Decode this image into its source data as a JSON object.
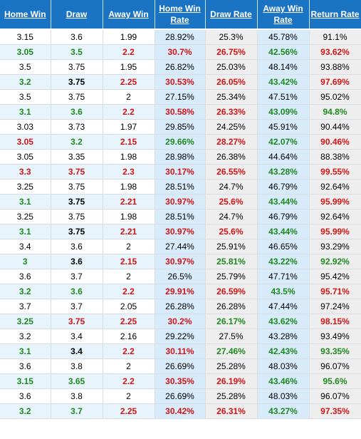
{
  "headers": {
    "home_win": "Home Win",
    "draw": "Draw",
    "away_win": "Away Win",
    "home_win_rate": "Home Win Rate",
    "draw_rate": "Draw Rate",
    "away_win_rate": "Away Win Rate",
    "return_rate": "Return Rate"
  },
  "colors": {
    "header_bg": "#1b73c4",
    "green": "#1e8a1e",
    "red": "#d21414",
    "rate_bg": "#d8ebfa",
    "grey_bg": "#eeeeee"
  },
  "rows": [
    {
      "highlight": false,
      "home": "3.15",
      "draw": "3.6",
      "away": "1.99",
      "home_rate": "28.92%",
      "draw_rate": "25.3%",
      "away_rate": "45.78%",
      "return": "91.1%",
      "c": [
        "k",
        "k",
        "k",
        "k",
        "k",
        "k",
        "k"
      ]
    },
    {
      "highlight": true,
      "home": "3.05",
      "draw": "3.5",
      "away": "2.2",
      "home_rate": "30.7%",
      "draw_rate": "26.75%",
      "away_rate": "42.56%",
      "return": "93.62%",
      "c": [
        "g",
        "g",
        "r",
        "r",
        "r",
        "g",
        "r"
      ]
    },
    {
      "highlight": false,
      "home": "3.5",
      "draw": "3.75",
      "away": "1.95",
      "home_rate": "26.82%",
      "draw_rate": "25.03%",
      "away_rate": "48.14%",
      "return": "93.88%",
      "c": [
        "k",
        "k",
        "k",
        "k",
        "k",
        "k",
        "k"
      ]
    },
    {
      "highlight": true,
      "home": "3.2",
      "draw": "3.75",
      "away": "2.25",
      "home_rate": "30.53%",
      "draw_rate": "26.05%",
      "away_rate": "43.42%",
      "return": "97.69%",
      "c": [
        "g",
        "k",
        "r",
        "r",
        "r",
        "g",
        "r"
      ]
    },
    {
      "highlight": false,
      "home": "3.5",
      "draw": "3.75",
      "away": "2",
      "home_rate": "27.15%",
      "draw_rate": "25.34%",
      "away_rate": "47.51%",
      "return": "95.02%",
      "c": [
        "k",
        "k",
        "k",
        "k",
        "k",
        "k",
        "k"
      ]
    },
    {
      "highlight": true,
      "home": "3.1",
      "draw": "3.6",
      "away": "2.2",
      "home_rate": "30.58%",
      "draw_rate": "26.33%",
      "away_rate": "43.09%",
      "return": "94.8%",
      "c": [
        "g",
        "g",
        "r",
        "r",
        "r",
        "g",
        "g"
      ]
    },
    {
      "highlight": false,
      "home": "3.03",
      "draw": "3.73",
      "away": "1.97",
      "home_rate": "29.85%",
      "draw_rate": "24.25%",
      "away_rate": "45.91%",
      "return": "90.44%",
      "c": [
        "k",
        "k",
        "k",
        "k",
        "k",
        "k",
        "k"
      ]
    },
    {
      "highlight": true,
      "home": "3.05",
      "draw": "3.2",
      "away": "2.15",
      "home_rate": "29.66%",
      "draw_rate": "28.27%",
      "away_rate": "42.07%",
      "return": "90.46%",
      "c": [
        "r",
        "g",
        "r",
        "g",
        "r",
        "g",
        "r"
      ]
    },
    {
      "highlight": false,
      "home": "3.05",
      "draw": "3.35",
      "away": "1.98",
      "home_rate": "28.98%",
      "draw_rate": "26.38%",
      "away_rate": "44.64%",
      "return": "88.38%",
      "c": [
        "k",
        "k",
        "k",
        "k",
        "k",
        "k",
        "k"
      ]
    },
    {
      "highlight": true,
      "home": "3.3",
      "draw": "3.75",
      "away": "2.3",
      "home_rate": "30.17%",
      "draw_rate": "26.55%",
      "away_rate": "43.28%",
      "return": "99.55%",
      "c": [
        "r",
        "r",
        "r",
        "r",
        "r",
        "g",
        "r"
      ]
    },
    {
      "highlight": false,
      "home": "3.25",
      "draw": "3.75",
      "away": "1.98",
      "home_rate": "28.51%",
      "draw_rate": "24.7%",
      "away_rate": "46.79%",
      "return": "92.64%",
      "c": [
        "k",
        "k",
        "k",
        "k",
        "k",
        "k",
        "k"
      ]
    },
    {
      "highlight": true,
      "home": "3.1",
      "draw": "3.75",
      "away": "2.21",
      "home_rate": "30.97%",
      "draw_rate": "25.6%",
      "away_rate": "43.44%",
      "return": "95.99%",
      "c": [
        "g",
        "k",
        "r",
        "r",
        "r",
        "g",
        "r"
      ]
    },
    {
      "highlight": false,
      "home": "3.25",
      "draw": "3.75",
      "away": "1.98",
      "home_rate": "28.51%",
      "draw_rate": "24.7%",
      "away_rate": "46.79%",
      "return": "92.64%",
      "c": [
        "k",
        "k",
        "k",
        "k",
        "k",
        "k",
        "k"
      ]
    },
    {
      "highlight": true,
      "home": "3.1",
      "draw": "3.75",
      "away": "2.21",
      "home_rate": "30.97%",
      "draw_rate": "25.6%",
      "away_rate": "43.44%",
      "return": "95.99%",
      "c": [
        "g",
        "k",
        "r",
        "r",
        "r",
        "g",
        "r"
      ]
    },
    {
      "highlight": false,
      "home": "3.4",
      "draw": "3.6",
      "away": "2",
      "home_rate": "27.44%",
      "draw_rate": "25.91%",
      "away_rate": "46.65%",
      "return": "93.29%",
      "c": [
        "k",
        "k",
        "k",
        "k",
        "k",
        "k",
        "k"
      ]
    },
    {
      "highlight": true,
      "home": "3",
      "draw": "3.6",
      "away": "2.15",
      "home_rate": "30.97%",
      "draw_rate": "25.81%",
      "away_rate": "43.22%",
      "return": "92.92%",
      "c": [
        "g",
        "k",
        "r",
        "r",
        "g",
        "g",
        "g"
      ]
    },
    {
      "highlight": false,
      "home": "3.6",
      "draw": "3.7",
      "away": "2",
      "home_rate": "26.5%",
      "draw_rate": "25.79%",
      "away_rate": "47.71%",
      "return": "95.42%",
      "c": [
        "k",
        "k",
        "k",
        "k",
        "k",
        "k",
        "k"
      ]
    },
    {
      "highlight": true,
      "home": "3.2",
      "draw": "3.6",
      "away": "2.2",
      "home_rate": "29.91%",
      "draw_rate": "26.59%",
      "away_rate": "43.5%",
      "return": "95.71%",
      "c": [
        "g",
        "g",
        "r",
        "r",
        "r",
        "g",
        "r"
      ]
    },
    {
      "highlight": false,
      "home": "3.7",
      "draw": "3.7",
      "away": "2.05",
      "home_rate": "26.28%",
      "draw_rate": "26.28%",
      "away_rate": "47.44%",
      "return": "97.24%",
      "c": [
        "k",
        "k",
        "k",
        "k",
        "k",
        "k",
        "k"
      ]
    },
    {
      "highlight": true,
      "home": "3.25",
      "draw": "3.75",
      "away": "2.25",
      "home_rate": "30.2%",
      "draw_rate": "26.17%",
      "away_rate": "43.62%",
      "return": "98.15%",
      "c": [
        "g",
        "r",
        "r",
        "r",
        "g",
        "g",
        "r"
      ]
    },
    {
      "highlight": false,
      "home": "3.2",
      "draw": "3.4",
      "away": "2.16",
      "home_rate": "29.22%",
      "draw_rate": "27.5%",
      "away_rate": "43.28%",
      "return": "93.49%",
      "c": [
        "k",
        "k",
        "k",
        "k",
        "k",
        "k",
        "k"
      ]
    },
    {
      "highlight": true,
      "home": "3.1",
      "draw": "3.4",
      "away": "2.2",
      "home_rate": "30.11%",
      "draw_rate": "27.46%",
      "away_rate": "42.43%",
      "return": "93.35%",
      "c": [
        "g",
        "k",
        "r",
        "r",
        "g",
        "g",
        "g"
      ]
    },
    {
      "highlight": false,
      "home": "3.6",
      "draw": "3.8",
      "away": "2",
      "home_rate": "26.69%",
      "draw_rate": "25.28%",
      "away_rate": "48.03%",
      "return": "96.07%",
      "c": [
        "k",
        "k",
        "k",
        "k",
        "k",
        "k",
        "k"
      ]
    },
    {
      "highlight": true,
      "home": "3.15",
      "draw": "3.65",
      "away": "2.2",
      "home_rate": "30.35%",
      "draw_rate": "26.19%",
      "away_rate": "43.46%",
      "return": "95.6%",
      "c": [
        "g",
        "g",
        "r",
        "r",
        "r",
        "g",
        "g"
      ]
    },
    {
      "highlight": false,
      "home": "3.6",
      "draw": "3.8",
      "away": "2",
      "home_rate": "26.69%",
      "draw_rate": "25.28%",
      "away_rate": "48.03%",
      "return": "96.07%",
      "c": [
        "k",
        "k",
        "k",
        "k",
        "k",
        "k",
        "k"
      ]
    },
    {
      "highlight": true,
      "home": "3.2",
      "draw": "3.7",
      "away": "2.25",
      "home_rate": "30.42%",
      "draw_rate": "26.31%",
      "away_rate": "43.27%",
      "return": "97.35%",
      "c": [
        "g",
        "g",
        "r",
        "r",
        "r",
        "g",
        "r"
      ]
    }
  ]
}
